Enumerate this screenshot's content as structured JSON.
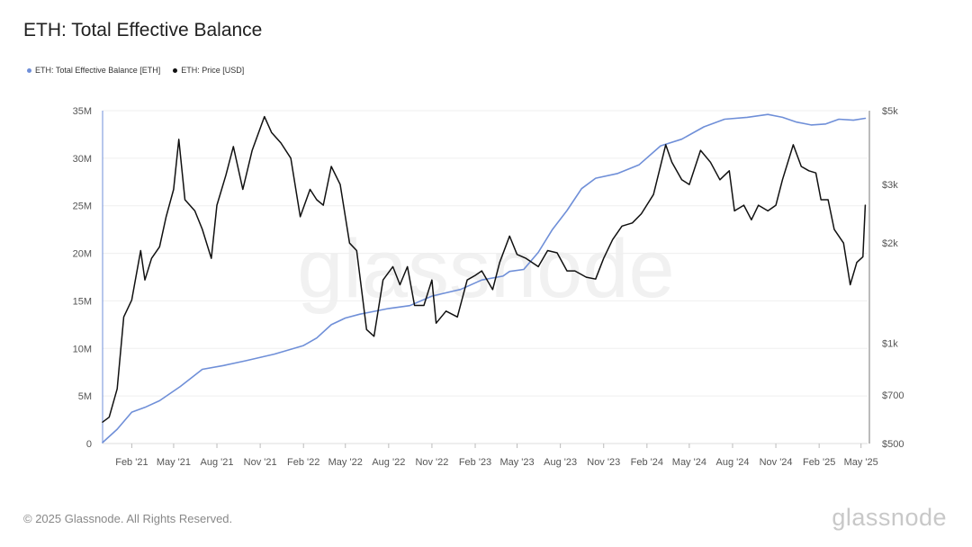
{
  "title": "ETH: Total Effective Balance",
  "footer": {
    "copyright": "© 2025 Glassnode. All Rights Reserved.",
    "brand": "glassnode"
  },
  "watermark": "glassnode",
  "colors": {
    "balance": "#6f8fd8",
    "price": "#111111",
    "grid": "#efefef",
    "axis": "#cccccc"
  },
  "chart_data": {
    "type": "line",
    "title": "ETH: Total Effective Balance",
    "legend": {
      "placement": "top-left"
    },
    "grid": true,
    "x_ticks": [
      "Feb '21",
      "May '21",
      "Aug '21",
      "Nov '21",
      "Feb '22",
      "May '22",
      "Aug '22",
      "Nov '22",
      "Feb '23",
      "May '23",
      "Aug '23",
      "Nov '23",
      "Feb '24",
      "May '24",
      "Aug '24",
      "Nov '24",
      "Feb '25",
      "May '25"
    ],
    "x_range": [
      "2020-12-01",
      "2025-05-15"
    ],
    "y_left": {
      "ticks": [
        "0",
        "5M",
        "10M",
        "15M",
        "20M",
        "25M",
        "30M",
        "35M"
      ],
      "range": [
        0,
        35
      ]
    },
    "y_right": {
      "scale": "log",
      "ticks": [
        "$500",
        "$700",
        "$1k",
        "$2k",
        "$3k",
        "$5k"
      ],
      "tick_values": [
        500,
        700,
        1000,
        2000,
        3000,
        5000
      ],
      "range": [
        500,
        5000
      ]
    },
    "series": [
      {
        "name": "ETH: Total Effective Balance [ETH]",
        "axis": "left",
        "unit": "M ETH",
        "color": "#6f8fd8",
        "points": [
          [
            "2020-12-01",
            0.1
          ],
          [
            "2021-01-01",
            1.5
          ],
          [
            "2021-02-01",
            3.3
          ],
          [
            "2021-03-01",
            3.8
          ],
          [
            "2021-04-01",
            4.5
          ],
          [
            "2021-05-15",
            6.0
          ],
          [
            "2021-07-01",
            7.8
          ],
          [
            "2021-08-15",
            8.2
          ],
          [
            "2021-10-01",
            8.7
          ],
          [
            "2021-12-01",
            9.4
          ],
          [
            "2022-02-01",
            10.3
          ],
          [
            "2022-03-01",
            11.1
          ],
          [
            "2022-04-01",
            12.5
          ],
          [
            "2022-05-01",
            13.2
          ],
          [
            "2022-06-01",
            13.6
          ],
          [
            "2022-07-01",
            13.9
          ],
          [
            "2022-08-01",
            14.2
          ],
          [
            "2022-09-15",
            14.5
          ],
          [
            "2022-11-01",
            15.5
          ],
          [
            "2023-01-01",
            16.2
          ],
          [
            "2023-02-15",
            17.2
          ],
          [
            "2023-04-01",
            17.6
          ],
          [
            "2023-04-15",
            18.1
          ],
          [
            "2023-05-15",
            18.3
          ],
          [
            "2023-06-15",
            20.1
          ],
          [
            "2023-07-15",
            22.5
          ],
          [
            "2023-08-15",
            24.5
          ],
          [
            "2023-09-15",
            26.8
          ],
          [
            "2023-10-15",
            27.9
          ],
          [
            "2023-12-01",
            28.4
          ],
          [
            "2024-01-15",
            29.3
          ],
          [
            "2024-03-01",
            31.3
          ],
          [
            "2024-04-15",
            32.0
          ],
          [
            "2024-06-01",
            33.3
          ],
          [
            "2024-07-15",
            34.1
          ],
          [
            "2024-09-01",
            34.3
          ],
          [
            "2024-10-15",
            34.6
          ],
          [
            "2024-11-15",
            34.3
          ],
          [
            "2024-12-15",
            33.8
          ],
          [
            "2025-01-15",
            33.5
          ],
          [
            "2025-02-15",
            33.6
          ],
          [
            "2025-03-15",
            34.1
          ],
          [
            "2025-04-15",
            34.0
          ],
          [
            "2025-05-10",
            34.2
          ]
        ]
      },
      {
        "name": "ETH: Price [USD]",
        "axis": "right",
        "unit": "USD",
        "color": "#111111",
        "points": [
          [
            "2020-12-01",
            580
          ],
          [
            "2020-12-15",
            600
          ],
          [
            "2021-01-01",
            730
          ],
          [
            "2021-01-15",
            1200
          ],
          [
            "2021-02-01",
            1350
          ],
          [
            "2021-02-20",
            1900
          ],
          [
            "2021-03-01",
            1550
          ],
          [
            "2021-03-15",
            1800
          ],
          [
            "2021-04-01",
            1950
          ],
          [
            "2021-04-15",
            2400
          ],
          [
            "2021-05-01",
            2900
          ],
          [
            "2021-05-12",
            4100
          ],
          [
            "2021-05-25",
            2700
          ],
          [
            "2021-06-15",
            2500
          ],
          [
            "2021-07-01",
            2200
          ],
          [
            "2021-07-20",
            1800
          ],
          [
            "2021-08-01",
            2600
          ],
          [
            "2021-08-20",
            3200
          ],
          [
            "2021-09-05",
            3900
          ],
          [
            "2021-09-25",
            2900
          ],
          [
            "2021-10-15",
            3800
          ],
          [
            "2021-11-10",
            4800
          ],
          [
            "2021-11-25",
            4300
          ],
          [
            "2021-12-15",
            4000
          ],
          [
            "2022-01-05",
            3600
          ],
          [
            "2022-01-25",
            2400
          ],
          [
            "2022-02-15",
            2900
          ],
          [
            "2022-03-01",
            2700
          ],
          [
            "2022-03-15",
            2600
          ],
          [
            "2022-04-01",
            3400
          ],
          [
            "2022-04-20",
            3000
          ],
          [
            "2022-05-10",
            2000
          ],
          [
            "2022-05-25",
            1900
          ],
          [
            "2022-06-15",
            1100
          ],
          [
            "2022-07-01",
            1050
          ],
          [
            "2022-07-20",
            1550
          ],
          [
            "2022-08-10",
            1700
          ],
          [
            "2022-08-25",
            1500
          ],
          [
            "2022-09-10",
            1700
          ],
          [
            "2022-09-25",
            1300
          ],
          [
            "2022-10-15",
            1300
          ],
          [
            "2022-11-01",
            1550
          ],
          [
            "2022-11-10",
            1150
          ],
          [
            "2022-12-01",
            1250
          ],
          [
            "2022-12-25",
            1200
          ],
          [
            "2023-01-15",
            1550
          ],
          [
            "2023-02-01",
            1600
          ],
          [
            "2023-02-15",
            1650
          ],
          [
            "2023-03-10",
            1450
          ],
          [
            "2023-03-25",
            1750
          ],
          [
            "2023-04-15",
            2100
          ],
          [
            "2023-05-01",
            1850
          ],
          [
            "2023-05-20",
            1800
          ],
          [
            "2023-06-15",
            1700
          ],
          [
            "2023-07-05",
            1900
          ],
          [
            "2023-07-25",
            1870
          ],
          [
            "2023-08-15",
            1650
          ],
          [
            "2023-09-01",
            1650
          ],
          [
            "2023-09-25",
            1580
          ],
          [
            "2023-10-15",
            1560
          ],
          [
            "2023-11-01",
            1800
          ],
          [
            "2023-11-20",
            2050
          ],
          [
            "2023-12-10",
            2250
          ],
          [
            "2024-01-01",
            2300
          ],
          [
            "2024-01-20",
            2450
          ],
          [
            "2024-02-15",
            2800
          ],
          [
            "2024-03-12",
            3950
          ],
          [
            "2024-03-25",
            3500
          ],
          [
            "2024-04-15",
            3100
          ],
          [
            "2024-05-01",
            3000
          ],
          [
            "2024-05-25",
            3800
          ],
          [
            "2024-06-15",
            3500
          ],
          [
            "2024-07-05",
            3100
          ],
          [
            "2024-07-25",
            3300
          ],
          [
            "2024-08-05",
            2500
          ],
          [
            "2024-08-25",
            2600
          ],
          [
            "2024-09-10",
            2350
          ],
          [
            "2024-09-25",
            2600
          ],
          [
            "2024-10-15",
            2500
          ],
          [
            "2024-11-01",
            2600
          ],
          [
            "2024-11-15",
            3100
          ],
          [
            "2024-12-08",
            3950
          ],
          [
            "2024-12-25",
            3400
          ],
          [
            "2025-01-10",
            3300
          ],
          [
            "2025-01-25",
            3250
          ],
          [
            "2025-02-05",
            2700
          ],
          [
            "2025-02-20",
            2700
          ],
          [
            "2025-03-05",
            2200
          ],
          [
            "2025-03-25",
            2000
          ],
          [
            "2025-04-08",
            1500
          ],
          [
            "2025-04-22",
            1750
          ],
          [
            "2025-05-05",
            1820
          ],
          [
            "2025-05-10",
            2600
          ]
        ]
      }
    ]
  }
}
